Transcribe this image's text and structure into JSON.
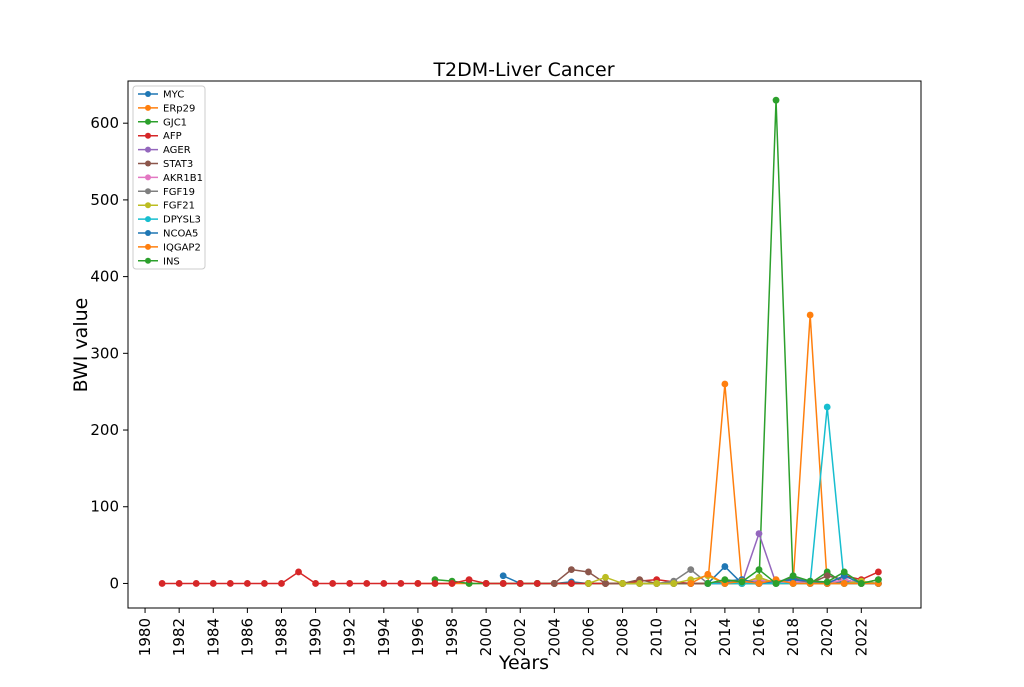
{
  "chart_data": {
    "type": "line",
    "title": "T2DM-Liver Cancer",
    "xlabel": "Years",
    "ylabel": "BWI value",
    "xlim": [
      1979.0,
      2025.5
    ],
    "ylim": [
      -32,
      655
    ],
    "xticks": [
      1980,
      1982,
      1984,
      1986,
      1988,
      1990,
      1992,
      1994,
      1996,
      1998,
      2000,
      2002,
      2004,
      2006,
      2008,
      2010,
      2012,
      2014,
      2016,
      2018,
      2020,
      2022
    ],
    "yticks": [
      0,
      100,
      200,
      300,
      400,
      500,
      600
    ],
    "grid": false,
    "legend_position": "top-left",
    "years": [
      1981,
      1982,
      1983,
      1984,
      1985,
      1986,
      1987,
      1988,
      1989,
      1990,
      1991,
      1992,
      1993,
      1994,
      1995,
      1996,
      1997,
      1998,
      1999,
      2000,
      2001,
      2002,
      2003,
      2004,
      2005,
      2006,
      2007,
      2008,
      2009,
      2010,
      2011,
      2012,
      2013,
      2014,
      2015,
      2016,
      2017,
      2018,
      2019,
      2020,
      2021,
      2022,
      2023
    ],
    "series": [
      {
        "name": "MYC",
        "color": "#1f77b4",
        "start": 2001,
        "values": [
          10,
          0,
          0,
          0,
          2,
          0,
          0,
          0,
          0,
          0,
          0,
          0,
          0,
          22,
          0,
          0,
          0,
          5,
          0,
          0,
          2,
          0,
          0
        ]
      },
      {
        "name": "ERp29",
        "color": "#ff7f0e",
        "start": 1996,
        "values": [
          0,
          0,
          0,
          0,
          0,
          0,
          0,
          0,
          0,
          0,
          0,
          0,
          0,
          0,
          0,
          0,
          0,
          0,
          260,
          0,
          0,
          0,
          0,
          350,
          0,
          0,
          0,
          0
        ]
      },
      {
        "name": "GJC1",
        "color": "#2ca02c",
        "start": 1997,
        "values": [
          5,
          3,
          0,
          0,
          0,
          0,
          0,
          0,
          0,
          0,
          0,
          0,
          0,
          0,
          0,
          0,
          0,
          0,
          0,
          0,
          630,
          0,
          0,
          15,
          0,
          0
        ]
      },
      {
        "name": "AFP",
        "color": "#d62728",
        "start": 1981,
        "values": [
          0,
          0,
          0,
          0,
          0,
          0,
          0,
          0,
          15,
          0,
          0,
          0,
          0,
          0,
          0,
          0,
          0,
          0,
          5,
          0,
          0,
          0,
          0,
          0,
          0,
          0,
          0,
          0,
          3,
          5,
          2,
          0,
          0,
          0,
          0,
          8,
          0,
          8,
          0,
          0,
          10,
          5,
          15
        ]
      },
      {
        "name": "AGER",
        "color": "#9467bd",
        "start": 2013,
        "values": [
          0,
          0,
          0,
          65,
          0,
          0,
          0,
          0,
          5,
          0,
          0
        ]
      },
      {
        "name": "STAT3",
        "color": "#8c564b",
        "start": 2004,
        "values": [
          0,
          18,
          15,
          0,
          0,
          5,
          0,
          0,
          0,
          0,
          2,
          0,
          2,
          0,
          8,
          0,
          10,
          5,
          0,
          5
        ]
      },
      {
        "name": "AKR1B1",
        "color": "#e377c2",
        "start": 2015,
        "values": [
          0,
          5,
          0,
          3,
          0,
          0,
          5,
          0,
          0
        ]
      },
      {
        "name": "FGF19",
        "color": "#7f7f7f",
        "start": 2010,
        "values": [
          0,
          3,
          18,
          0,
          0,
          5,
          0,
          0,
          10,
          0,
          0,
          0,
          0,
          0
        ]
      },
      {
        "name": "FGF21",
        "color": "#bcbd22",
        "start": 2006,
        "values": [
          0,
          8,
          0,
          0,
          0,
          0,
          5,
          10,
          0,
          0,
          8,
          0,
          0,
          0,
          0,
          0,
          3,
          0
        ]
      },
      {
        "name": "DPYSL3",
        "color": "#17becf",
        "start": 2013,
        "values": [
          0,
          0,
          0,
          0,
          0,
          0,
          0,
          230,
          0,
          0,
          0
        ]
      },
      {
        "name": "NCOA5",
        "color": "#1f77b4",
        "start": 2014,
        "values": [
          3,
          5,
          0,
          3,
          5,
          3,
          0,
          10,
          0,
          0
        ]
      },
      {
        "name": "IQGAP2",
        "color": "#ff7f0e",
        "start": 2012,
        "values": [
          0,
          12,
          0,
          3,
          0,
          5,
          0,
          0,
          0,
          0,
          0,
          0
        ]
      },
      {
        "name": "INS",
        "color": "#2ca02c",
        "start": 2013,
        "values": [
          0,
          5,
          2,
          18,
          0,
          10,
          3,
          2,
          15,
          0,
          5
        ]
      }
    ]
  }
}
